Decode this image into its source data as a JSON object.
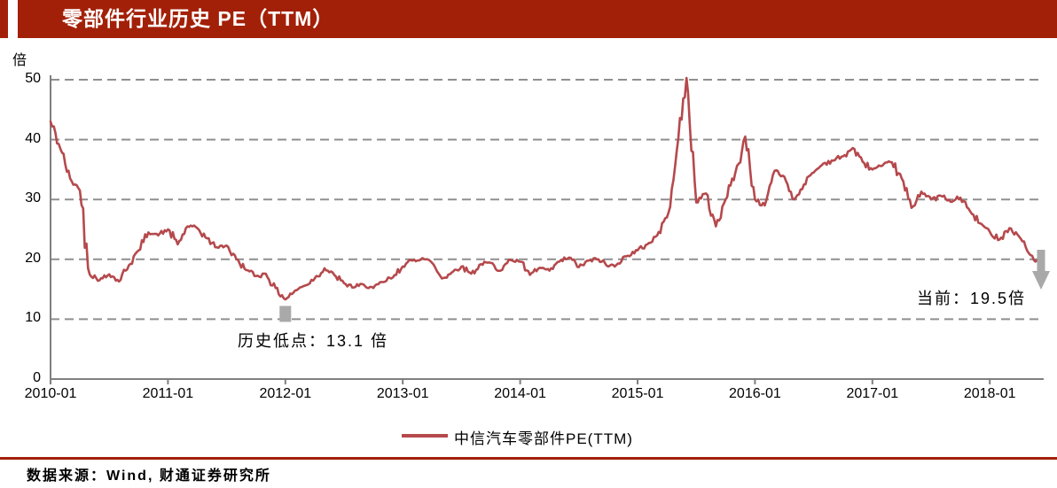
{
  "header": {
    "title": "零部件行业历史 PE（TTM）"
  },
  "colors": {
    "header_red": "#a32008",
    "line_red": "#b5494c",
    "grid_gray": "#8f8f8f",
    "axis_gray": "#7f7f7f",
    "annotation_gray": "#a9a9a9",
    "text_black": "#000000"
  },
  "chart_data": {
    "type": "line",
    "title": "零部件行业历史 PE（TTM）",
    "xlabel": "",
    "ylabel": "倍",
    "ylim": [
      0,
      52
    ],
    "y_ticks": [
      0,
      10,
      20,
      30,
      40,
      50
    ],
    "x_tick_labels": [
      "2010-01",
      "2011-01",
      "2012-01",
      "2013-01",
      "2014-01",
      "2015-01",
      "2016-01",
      "2017-01",
      "2018-01"
    ],
    "x_start": "2010-01",
    "x_step_months": 1,
    "grid": "dashed-horizontal",
    "legend_position": "bottom-center",
    "series": [
      {
        "name": "中信汽车零部件PE(TTM)",
        "color": "#b5494c",
        "values": [
          43.0,
          38.5,
          33.5,
          31.5,
          17.5,
          16.5,
          17.5,
          16.3,
          19.0,
          21.5,
          24.5,
          24.0,
          25.0,
          22.5,
          25.5,
          25.2,
          23.5,
          22.0,
          22.3,
          20.0,
          18.2,
          17.2,
          17.6,
          15.2,
          13.3,
          14.8,
          15.6,
          16.8,
          18.5,
          17.4,
          16.0,
          15.3,
          15.8,
          15.2,
          16.2,
          17.0,
          18.8,
          19.8,
          20.2,
          19.4,
          16.8,
          17.8,
          18.8,
          17.6,
          19.2,
          19.4,
          18.1,
          19.9,
          19.6,
          17.4,
          18.6,
          18.1,
          19.6,
          20.3,
          18.7,
          19.8,
          20.0,
          18.8,
          19.3,
          20.6,
          21.5,
          22.5,
          24.0,
          27.0,
          38.0,
          50.3,
          29.5,
          31.0,
          25.5,
          30.0,
          34.5,
          40.5,
          30.0,
          29.0,
          34.8,
          33.8,
          30.0,
          32.5,
          34.5,
          36.0,
          36.5,
          37.2,
          38.6,
          36.3,
          35.0,
          35.6,
          36.2,
          33.5,
          28.6,
          31.3,
          30.0,
          30.6,
          29.6,
          30.3,
          28.0,
          26.0,
          24.6,
          23.3,
          25.2,
          23.8,
          21.0,
          19.5
        ]
      }
    ],
    "annotations": {
      "historical_low": {
        "label": "历史低点：13.1 倍",
        "value": 13.1,
        "at": "2012-01",
        "marker": "gray-square"
      },
      "current": {
        "label": "当前：19.5倍",
        "value": 19.5,
        "at": "2018-06",
        "marker": "gray-down-arrow"
      }
    }
  },
  "footer": {
    "source": "数据来源：Wind, 财通证券研究所"
  }
}
